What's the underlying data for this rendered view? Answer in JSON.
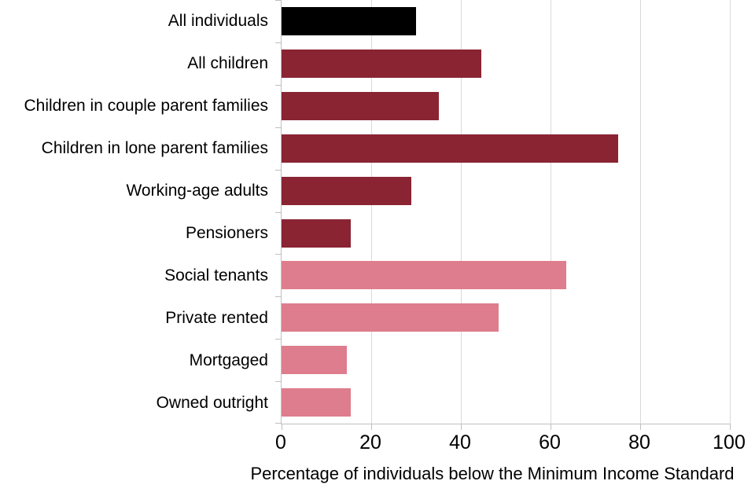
{
  "chart_data": {
    "type": "bar",
    "orientation": "horizontal",
    "title": "",
    "xlabel": "Percentage of individuals below the Minimum Income Standard",
    "ylabel": "",
    "xlim": [
      0,
      100
    ],
    "xticks": [
      0,
      20,
      40,
      60,
      80,
      100
    ],
    "grid": "vertical-gridlines-at-xticks",
    "legend": "none",
    "categories": [
      "All individuals",
      "All children",
      "Children in couple parent families",
      "Children in lone parent families",
      "Working-age adults",
      "Pensioners",
      "Social tenants",
      "Private rented",
      "Mortgaged",
      "Owned outright"
    ],
    "values": [
      30,
      44.5,
      35,
      75,
      29,
      15.5,
      63.5,
      48.5,
      14.5,
      15.5
    ],
    "bar_colors": [
      "#000000",
      "#8A2433",
      "#8A2433",
      "#8A2433",
      "#8A2433",
      "#8A2433",
      "#DE7D8D",
      "#DE7D8D",
      "#DE7D8D",
      "#DE7D8D"
    ],
    "colors": {
      "black_bar": "#000000",
      "dark_red_bar": "#8A2433",
      "pink_bar": "#DE7D8D",
      "gridline": "#D9D9D9",
      "axis": "#BFBFBF",
      "text": "#000000",
      "background": "#FFFFFF"
    }
  }
}
